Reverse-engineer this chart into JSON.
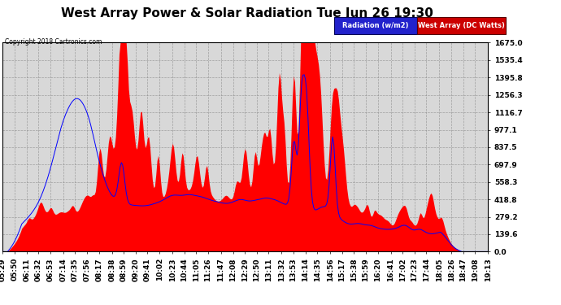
{
  "title": "West Array Power & Solar Radiation Tue Jun 26 19:30",
  "copyright": "Copyright 2018 Cartronics.com",
  "legend_radiation": "Radiation (w/m2)",
  "legend_west": "West Array (DC Watts)",
  "background_color": "#ffffff",
  "plot_bg_color": "#d8d8d8",
  "grid_color": "#888888",
  "y_ticks": [
    0.0,
    139.6,
    279.2,
    418.8,
    558.3,
    697.9,
    837.5,
    977.1,
    1116.7,
    1256.3,
    1395.8,
    1535.4,
    1675.0
  ],
  "y_max": 1675.0,
  "title_fontsize": 11,
  "tick_fontsize": 6.5,
  "x_tick_labels": [
    "05:29",
    "05:50",
    "06:11",
    "06:32",
    "06:53",
    "07:14",
    "07:35",
    "07:56",
    "08:17",
    "08:38",
    "08:59",
    "09:20",
    "09:41",
    "10:02",
    "10:23",
    "10:44",
    "11:05",
    "11:26",
    "11:47",
    "12:08",
    "12:29",
    "12:50",
    "13:11",
    "13:32",
    "13:53",
    "14:14",
    "14:35",
    "14:56",
    "15:17",
    "15:38",
    "15:59",
    "16:20",
    "16:41",
    "17:02",
    "17:23",
    "17:44",
    "18:05",
    "18:26",
    "18:47",
    "19:08",
    "19:13"
  ]
}
